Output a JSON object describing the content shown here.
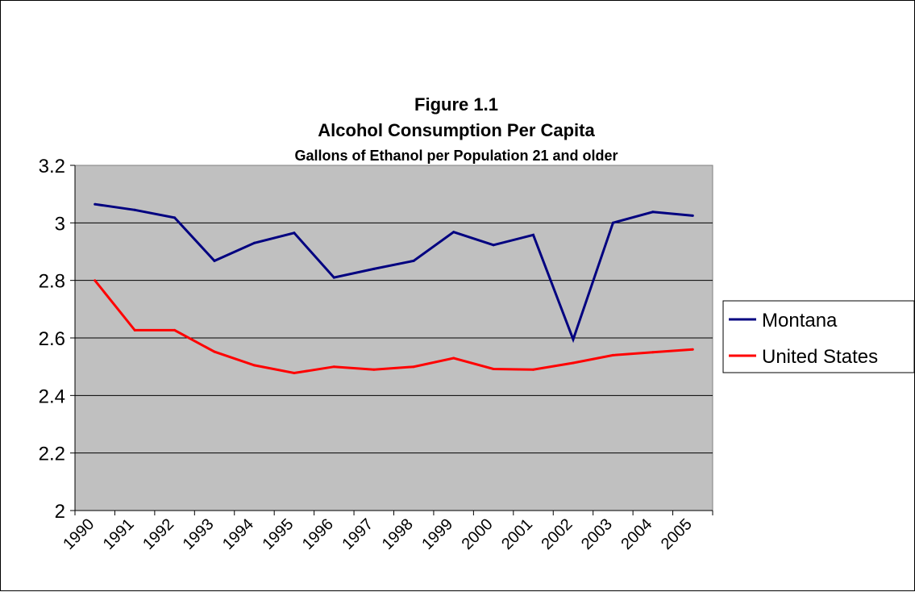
{
  "chart_data": {
    "type": "line",
    "title": "Figure 1.1",
    "subtitle": "Alcohol Consumption Per Capita",
    "subtitle2": "Gallons of Ethanol per Population 21 and older",
    "xlabel": "",
    "ylabel": "",
    "categories": [
      "1990",
      "1991",
      "1992",
      "1993",
      "1994",
      "1995",
      "1996",
      "1997",
      "1998",
      "1999",
      "2000",
      "2001",
      "2002",
      "2003",
      "2004",
      "2005"
    ],
    "ylim": [
      2,
      3.2
    ],
    "yticks": [
      "2",
      "2.2",
      "2.4",
      "2.6",
      "2.8",
      "3",
      "3.2"
    ],
    "grid": true,
    "legend_position": "right",
    "plot_background": "#c0c0c0",
    "series": [
      {
        "name": "Montana",
        "color": "#000080",
        "values": [
          3.065,
          3.045,
          3.018,
          2.868,
          2.93,
          2.965,
          2.81,
          2.84,
          2.868,
          2.968,
          2.923,
          2.958,
          2.595,
          3.0,
          3.038,
          3.025
        ]
      },
      {
        "name": "United States",
        "color": "#ff0000",
        "values": [
          2.8,
          2.627,
          2.627,
          2.552,
          2.505,
          2.478,
          2.5,
          2.49,
          2.5,
          2.53,
          2.492,
          2.49,
          2.513,
          2.54,
          2.55,
          2.56
        ]
      }
    ]
  }
}
